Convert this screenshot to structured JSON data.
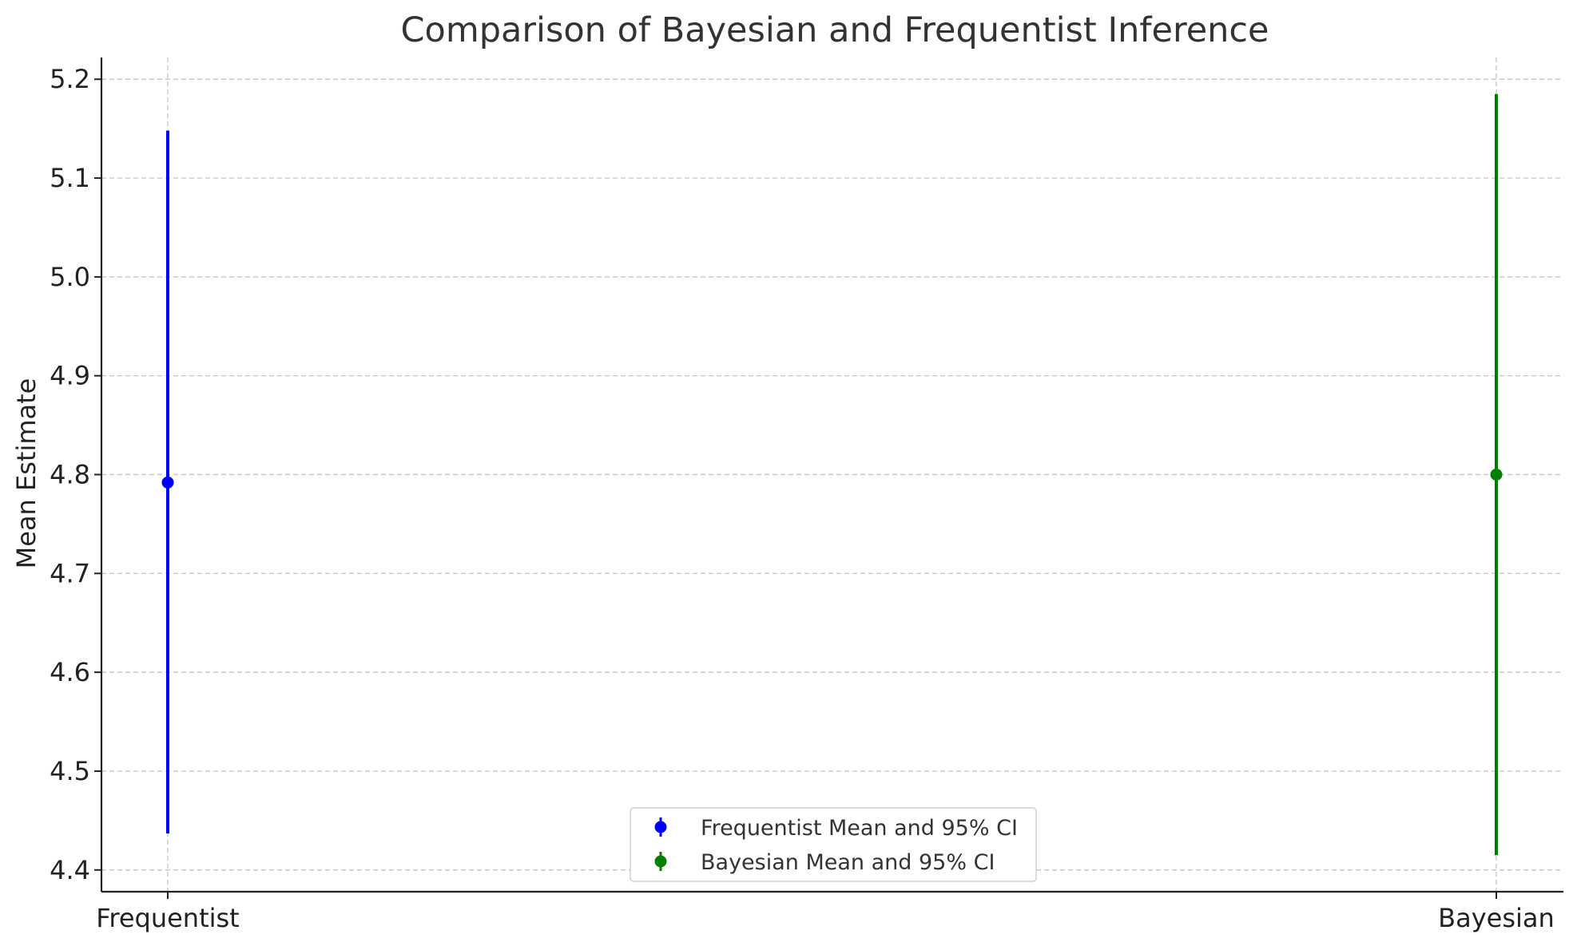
{
  "chart_data": {
    "type": "errorbar",
    "title": "Comparison of Bayesian and Frequentist Inference",
    "xlabel": "",
    "ylabel": "Mean Estimate",
    "ylim": [
      4.378,
      5.222
    ],
    "y_ticks": [
      "4.4",
      "4.5",
      "4.6",
      "4.7",
      "4.8",
      "4.9",
      "5.0",
      "5.1",
      "5.2"
    ],
    "categories": [
      "Frequentist",
      "Bayesian"
    ],
    "grid": true,
    "legend_position": "lower-center",
    "series": [
      {
        "name": "Frequentist Mean and 95% CI",
        "category": "Frequentist",
        "mean": 4.792,
        "ci_lower": 4.437,
        "ci_upper": 5.148,
        "color": "#0000ff"
      },
      {
        "name": "Bayesian Mean and 95% CI",
        "category": "Bayesian",
        "mean": 4.8,
        "ci_lower": 4.415,
        "ci_upper": 5.185,
        "color": "#008000"
      }
    ]
  }
}
